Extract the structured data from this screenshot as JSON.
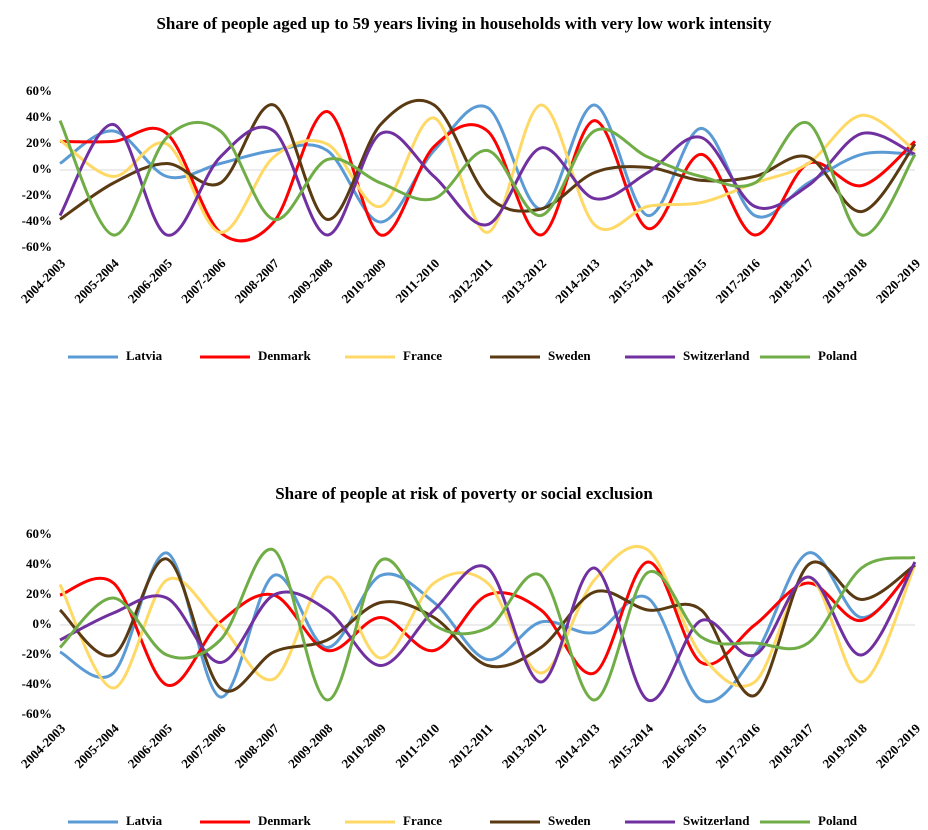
{
  "chart_data": [
    {
      "type": "line",
      "title": "Share of people aged up to 59 years living in households with very low work intensity",
      "categories": [
        "2004-2003",
        "2005-2004",
        "2006-2005",
        "2007-2006",
        "2008-2007",
        "2009-2008",
        "2010-2009",
        "2011-2010",
        "2012-2011",
        "2013-2012",
        "2014-2013",
        "2015-2014",
        "2016-2015",
        "2017-2016",
        "2018-2017",
        "2019-2018",
        "2020-2019"
      ],
      "ylim": [
        -60,
        60
      ],
      "yticks": [
        {
          "value": -60,
          "label": "-60%"
        },
        {
          "value": -40,
          "label": "-40%"
        },
        {
          "value": -20,
          "label": "-20%"
        },
        {
          "value": 0,
          "label": "0%"
        },
        {
          "value": 20,
          "label": "20%"
        },
        {
          "value": 40,
          "label": "40%"
        },
        {
          "value": 60,
          "label": "60%"
        }
      ],
      "series": [
        {
          "name": "Latvia",
          "color": "#5b9bd5",
          "values": [
            5,
            30,
            -5,
            5,
            15,
            15,
            -40,
            15,
            48,
            -30,
            50,
            -35,
            32,
            -35,
            -10,
            12,
            12
          ]
        },
        {
          "name": "Denmark",
          "color": "#ff0000",
          "values": [
            22,
            22,
            28,
            -48,
            -40,
            45,
            -50,
            18,
            30,
            -50,
            38,
            -45,
            12,
            -50,
            5,
            -12,
            22
          ]
        },
        {
          "name": "France",
          "color": "#ffd966",
          "values": [
            23,
            -5,
            20,
            -48,
            10,
            20,
            -28,
            40,
            -48,
            50,
            -42,
            -28,
            -25,
            -10,
            5,
            42,
            15
          ]
        },
        {
          "name": "Sweden",
          "color": "#5a3a12",
          "values": [
            -38,
            -10,
            5,
            -10,
            50,
            -38,
            35,
            50,
            -20,
            -30,
            -2,
            2,
            -8,
            -5,
            10,
            -32,
            20
          ]
        },
        {
          "name": "Switzerland",
          "color": "#7030a0",
          "values": [
            -35,
            35,
            -50,
            10,
            30,
            -50,
            28,
            -5,
            -42,
            17,
            -22,
            -2,
            25,
            -28,
            -12,
            28,
            12
          ]
        },
        {
          "name": "Poland",
          "color": "#70ad47",
          "values": [
            38,
            -50,
            25,
            30,
            -38,
            8,
            -10,
            -22,
            15,
            -35,
            30,
            10,
            -5,
            -10,
            36,
            -50,
            12
          ]
        }
      ]
    },
    {
      "type": "line",
      "title": "Share of people at risk of poverty or social exclusion",
      "categories": [
        "2004-2003",
        "2005-2004",
        "2006-2005",
        "2007-2006",
        "2008-2007",
        "2009-2008",
        "2010-2009",
        "2011-2010",
        "2012-2011",
        "2013-2012",
        "2014-2013",
        "2015-2014",
        "2016-2015",
        "2017-2016",
        "2018-2017",
        "2019-2018",
        "2020-2019"
      ],
      "ylim": [
        -60,
        60
      ],
      "yticks": [
        {
          "value": -60,
          "label": "-60%"
        },
        {
          "value": -40,
          "label": "-40%"
        },
        {
          "value": -20,
          "label": "-20%"
        },
        {
          "value": 0,
          "label": "0%"
        },
        {
          "value": 20,
          "label": "20%"
        },
        {
          "value": 40,
          "label": "40%"
        },
        {
          "value": 60,
          "label": "60%"
        }
      ],
      "series": [
        {
          "name": "Latvia",
          "color": "#5b9bd5",
          "values": [
            -18,
            -32,
            48,
            -48,
            33,
            -15,
            33,
            15,
            -23,
            2,
            -5,
            18,
            -50,
            -20,
            48,
            5,
            40
          ]
        },
        {
          "name": "Denmark",
          "color": "#ff0000",
          "values": [
            20,
            28,
            -40,
            2,
            20,
            -17,
            5,
            -17,
            20,
            10,
            -32,
            42,
            -25,
            0,
            28,
            3,
            40
          ]
        },
        {
          "name": "France",
          "color": "#ffd966",
          "values": [
            27,
            -42,
            30,
            0,
            -36,
            32,
            -22,
            28,
            28,
            -32,
            30,
            50,
            -20,
            -38,
            32,
            -38,
            40
          ]
        },
        {
          "name": "Sweden",
          "color": "#5a3a12",
          "values": [
            10,
            -20,
            44,
            -42,
            -18,
            -10,
            15,
            5,
            -27,
            -15,
            22,
            10,
            10,
            -47,
            40,
            17,
            40
          ]
        },
        {
          "name": "Switzerland",
          "color": "#7030a0",
          "values": [
            -10,
            8,
            18,
            -25,
            20,
            10,
            -27,
            10,
            38,
            -38,
            38,
            -50,
            3,
            -20,
            32,
            -20,
            42
          ]
        },
        {
          "name": "Poland",
          "color": "#70ad47",
          "values": [
            -15,
            18,
            -20,
            -10,
            50,
            -50,
            43,
            0,
            -2,
            33,
            -50,
            35,
            -8,
            -12,
            -12,
            38,
            45
          ]
        }
      ]
    }
  ]
}
